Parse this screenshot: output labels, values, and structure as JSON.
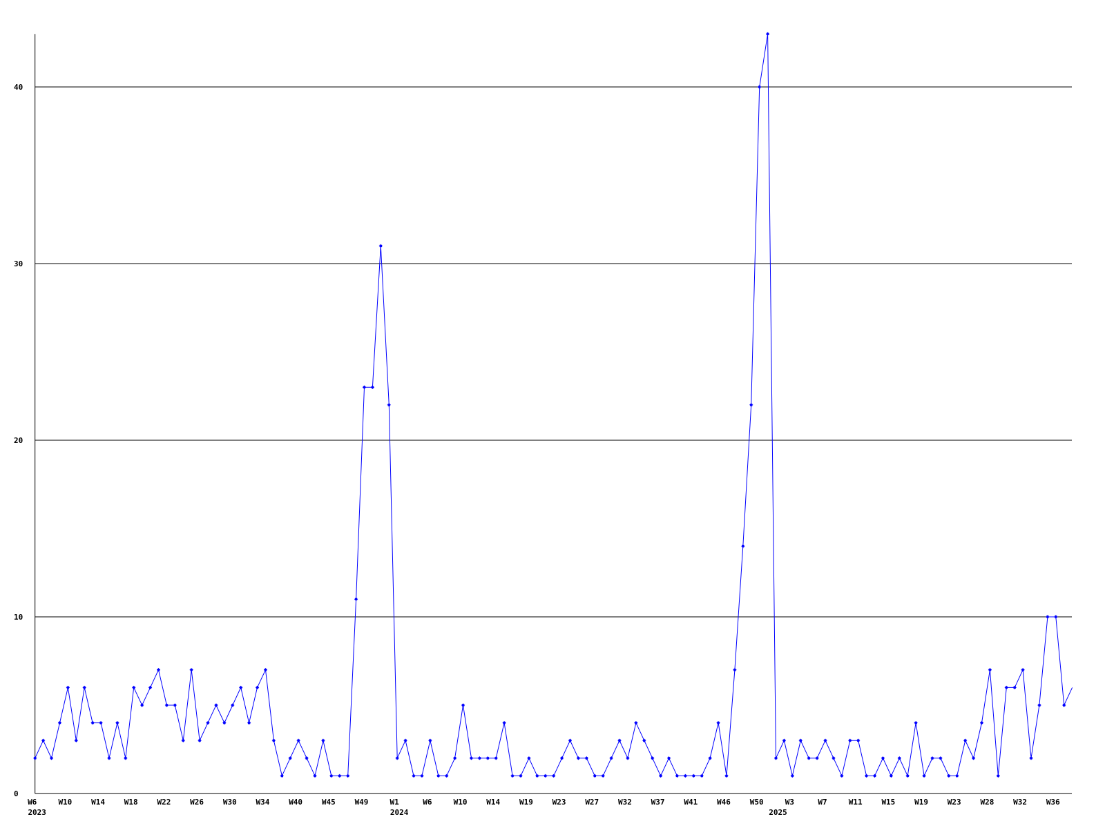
{
  "chart_data": {
    "type": "line",
    "title": "",
    "xlabel": "",
    "ylabel": "",
    "ylim": [
      0,
      43
    ],
    "yticks": [
      0,
      10,
      20,
      30,
      40
    ],
    "grid": "horizontal",
    "line_color": "#0000ff",
    "grid_color": "#000000",
    "values": [
      2,
      3,
      2,
      4,
      6,
      3,
      6,
      4,
      4,
      2,
      4,
      2,
      6,
      5,
      6,
      7,
      5,
      5,
      3,
      7,
      3,
      4,
      5,
      4,
      5,
      6,
      4,
      6,
      7,
      3,
      1,
      2,
      3,
      2,
      1,
      3,
      1,
      1,
      1,
      11,
      23,
      23,
      31,
      22,
      2,
      3,
      1,
      1,
      3,
      1,
      1,
      2,
      5,
      2,
      2,
      2,
      2,
      4,
      1,
      1,
      2,
      1,
      1,
      1,
      2,
      3,
      2,
      2,
      1,
      1,
      2,
      3,
      2,
      4,
      3,
      2,
      1,
      2,
      1,
      1,
      1,
      1,
      2,
      4,
      1,
      7,
      14,
      22,
      40,
      43,
      2,
      3,
      1,
      3,
      2,
      2,
      3,
      2,
      1,
      3,
      3,
      1,
      1,
      2,
      1,
      2,
      1,
      4,
      1,
      2,
      2,
      1,
      1,
      3,
      2,
      4,
      7,
      1,
      6,
      6,
      7,
      2,
      5,
      10,
      10,
      5,
      6
    ],
    "x_tick_labels": [
      {
        "index": 0,
        "label": "W6"
      },
      {
        "index": 4,
        "label": "W10"
      },
      {
        "index": 8,
        "label": "W14"
      },
      {
        "index": 12,
        "label": "W18"
      },
      {
        "index": 16,
        "label": "W22"
      },
      {
        "index": 20,
        "label": "W26"
      },
      {
        "index": 24,
        "label": "W30"
      },
      {
        "index": 28,
        "label": "W34"
      },
      {
        "index": 32,
        "label": "W40"
      },
      {
        "index": 36,
        "label": "W45"
      },
      {
        "index": 40,
        "label": "W49"
      },
      {
        "index": 44,
        "label": "W1"
      },
      {
        "index": 48,
        "label": "W6"
      },
      {
        "index": 52,
        "label": "W10"
      },
      {
        "index": 56,
        "label": "W14"
      },
      {
        "index": 60,
        "label": "W19"
      },
      {
        "index": 64,
        "label": "W23"
      },
      {
        "index": 68,
        "label": "W27"
      },
      {
        "index": 72,
        "label": "W32"
      },
      {
        "index": 76,
        "label": "W37"
      },
      {
        "index": 80,
        "label": "W41"
      },
      {
        "index": 84,
        "label": "W46"
      },
      {
        "index": 88,
        "label": "W50"
      },
      {
        "index": 92,
        "label": "W3"
      },
      {
        "index": 96,
        "label": "W7"
      },
      {
        "index": 100,
        "label": "W11"
      },
      {
        "index": 104,
        "label": "W15"
      },
      {
        "index": 108,
        "label": "W19"
      },
      {
        "index": 112,
        "label": "W23"
      },
      {
        "index": 116,
        "label": "W28"
      },
      {
        "index": 120,
        "label": "W32"
      },
      {
        "index": 124,
        "label": "W36"
      }
    ],
    "year_labels": [
      {
        "index": 0,
        "label": "2023"
      },
      {
        "index": 44,
        "label": "2024"
      },
      {
        "index": 90,
        "label": "2025"
      }
    ]
  }
}
